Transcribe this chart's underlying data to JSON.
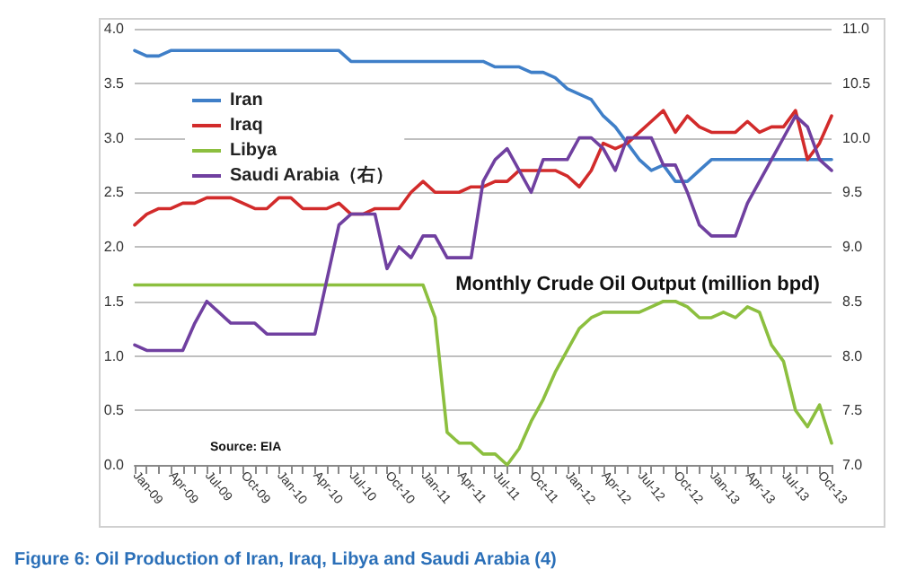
{
  "chart_data": {
    "type": "line",
    "title": "Monthly Crude Oil Output (million bpd)",
    "subtitle": "Figure 6: Oil Production of Iran, Iraq, Libya and Saudi Arabia (4)",
    "annotations": [
      "Source: EIA"
    ],
    "categories": [
      "Jan-09",
      null,
      null,
      "Apr-09",
      null,
      null,
      "Jul-09",
      null,
      null,
      "Oct-09",
      null,
      null,
      "Jan-10",
      null,
      null,
      "Apr-10",
      null,
      null,
      "Jul-10",
      null,
      null,
      "Oct-10",
      null,
      null,
      "Jan-11",
      null,
      null,
      "Apr-11",
      null,
      null,
      "Jul-11",
      null,
      null,
      "Oct-11",
      null,
      null,
      "Jan-12",
      null,
      null,
      "Apr-12",
      null,
      null,
      "Jul-12",
      null,
      null,
      "Oct-12",
      null,
      null,
      "Jan-13",
      null,
      null,
      "Apr-13",
      null,
      null,
      "Jul-13",
      null,
      null,
      "Oct-13",
      null
    ],
    "series": [
      {
        "name": "Iran",
        "color": "#3f7fc8",
        "values": [
          3.8,
          3.75,
          3.75,
          3.8,
          3.8,
          3.8,
          3.8,
          3.8,
          3.8,
          3.8,
          3.8,
          3.8,
          3.8,
          3.8,
          3.8,
          3.8,
          3.8,
          3.8,
          3.7,
          3.7,
          3.7,
          3.7,
          3.7,
          3.7,
          3.7,
          3.7,
          3.7,
          3.7,
          3.7,
          3.7,
          3.65,
          3.65,
          3.65,
          3.6,
          3.6,
          3.55,
          3.45,
          3.4,
          3.35,
          3.2,
          3.1,
          2.95,
          2.8,
          2.7,
          2.75,
          2.6,
          2.6,
          2.7,
          2.8,
          2.8,
          2.8,
          2.8,
          2.8,
          2.8,
          2.8,
          2.8,
          2.8,
          2.8,
          2.8
        ]
      },
      {
        "name": "Iraq",
        "color": "#d22b2b",
        "values": [
          2.2,
          2.3,
          2.35,
          2.35,
          2.4,
          2.4,
          2.45,
          2.45,
          2.45,
          2.4,
          2.35,
          2.35,
          2.45,
          2.45,
          2.35,
          2.35,
          2.35,
          2.4,
          2.3,
          2.3,
          2.35,
          2.35,
          2.35,
          2.5,
          2.6,
          2.5,
          2.5,
          2.5,
          2.55,
          2.55,
          2.6,
          2.6,
          2.7,
          2.7,
          2.7,
          2.7,
          2.65,
          2.55,
          2.7,
          2.95,
          2.9,
          2.95,
          3.05,
          3.15,
          3.25,
          3.05,
          3.2,
          3.1,
          3.05,
          3.05,
          3.05,
          3.15,
          3.05,
          3.1,
          3.1,
          3.25,
          2.8,
          2.95,
          3.2
        ]
      },
      {
        "name": "Libya",
        "color": "#8cbf3f",
        "values": [
          1.65,
          1.65,
          1.65,
          1.65,
          1.65,
          1.65,
          1.65,
          1.65,
          1.65,
          1.65,
          1.65,
          1.65,
          1.65,
          1.65,
          1.65,
          1.65,
          1.65,
          1.65,
          1.65,
          1.65,
          1.65,
          1.65,
          1.65,
          1.65,
          1.65,
          1.35,
          0.3,
          0.2,
          0.2,
          0.1,
          0.1,
          0.0,
          0.15,
          0.4,
          0.6,
          0.85,
          1.05,
          1.25,
          1.35,
          1.4,
          1.4,
          1.4,
          1.4,
          1.45,
          1.5,
          1.5,
          1.45,
          1.35,
          1.35,
          1.4,
          1.35,
          1.45,
          1.4,
          1.1,
          0.95,
          0.5,
          0.35,
          0.55,
          0.2
        ]
      },
      {
        "name": "Saudi Arabia（右）",
        "color": "#7040a0",
        "axis": "y2",
        "values": [
          8.1,
          8.05,
          8.05,
          8.05,
          8.05,
          8.3,
          8.5,
          8.4,
          8.3,
          8.3,
          8.3,
          8.2,
          8.2,
          8.2,
          8.2,
          8.2,
          8.7,
          9.2,
          9.3,
          9.3,
          9.3,
          8.8,
          9.0,
          8.9,
          9.1,
          9.1,
          8.9,
          8.9,
          8.9,
          9.6,
          9.8,
          9.9,
          9.7,
          9.5,
          9.8,
          9.8,
          9.8,
          10.0,
          10.0,
          9.9,
          9.7,
          10.0,
          10.0,
          10.0,
          9.75,
          9.75,
          9.5,
          9.2,
          9.1,
          9.1,
          9.1,
          9.4,
          9.6,
          9.8,
          10.0,
          10.2,
          10.1,
          9.8,
          9.7
        ]
      }
    ],
    "ylim": [
      0,
      4
    ],
    "yticks": [
      {
        "value": 0,
        "label": "0.0"
      },
      {
        "value": 0.5,
        "label": "0.5"
      },
      {
        "value": 1,
        "label": "1.0"
      },
      {
        "value": 1.5,
        "label": "1.5"
      },
      {
        "value": 2,
        "label": "2.0"
      },
      {
        "value": 2.5,
        "label": "2.5"
      },
      {
        "value": 3,
        "label": "3.0"
      },
      {
        "value": 3.5,
        "label": "3.5"
      },
      {
        "value": 4,
        "label": "4.0"
      }
    ],
    "y2lim": [
      7,
      11
    ],
    "y2ticks": [
      {
        "value": 7,
        "label": "7.0"
      },
      {
        "value": 7.5,
        "label": "7.5"
      },
      {
        "value": 8,
        "label": "8.0"
      },
      {
        "value": 8.5,
        "label": "8.5"
      },
      {
        "value": 9,
        "label": "9.0"
      },
      {
        "value": 9.5,
        "label": "9.5"
      },
      {
        "value": 10,
        "label": "10.0"
      },
      {
        "value": 10.5,
        "label": "10.5"
      },
      {
        "value": 11,
        "label": "11.0"
      }
    ],
    "grid": "y",
    "legend": "top left",
    "marker": "none",
    "line_style": "solid"
  }
}
